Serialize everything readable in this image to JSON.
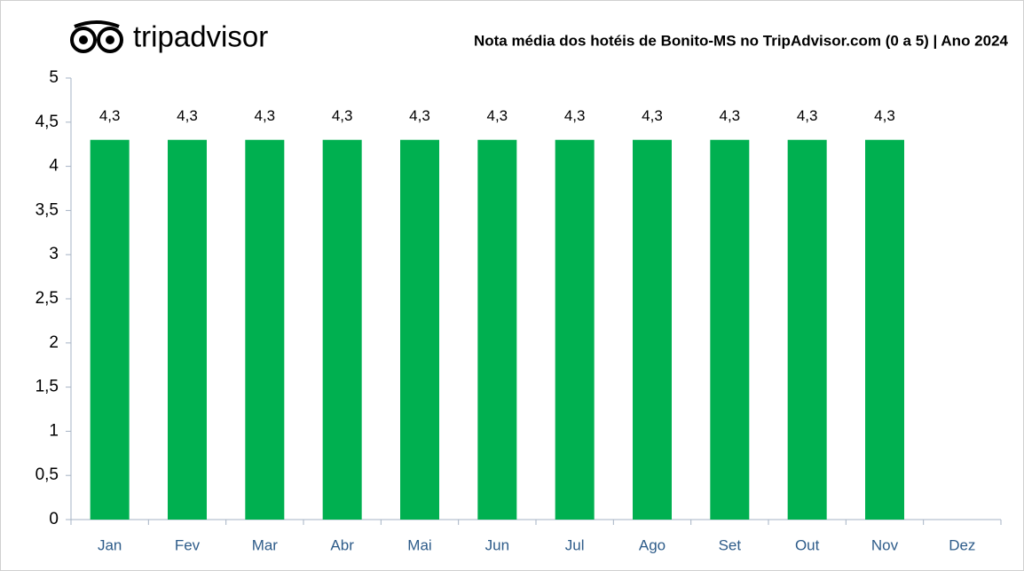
{
  "chart_data": {
    "type": "bar",
    "logo": "tripadvisor",
    "title": "Nota média dos hotéis de Bonito-MS no TripAdvisor.com (0 a 5) | Ano 2024",
    "categories": [
      "Jan",
      "Fev",
      "Mar",
      "Abr",
      "Mai",
      "Jun",
      "Jul",
      "Ago",
      "Set",
      "Out",
      "Nov",
      "Dez"
    ],
    "values": [
      4.3,
      4.3,
      4.3,
      4.3,
      4.3,
      4.3,
      4.3,
      4.3,
      4.3,
      4.3,
      4.3,
      null
    ],
    "value_labels": [
      "4,3",
      "4,3",
      "4,3",
      "4,3",
      "4,3",
      "4,3",
      "4,3",
      "4,3",
      "4,3",
      "4,3",
      "4,3",
      null
    ],
    "color": "#00b050",
    "ylim": [
      0,
      5
    ],
    "yticks": [
      0,
      {
        "value": 0.5,
        "label": "0,5"
      },
      1,
      {
        "value": 1.5,
        "label": "1,5"
      },
      2,
      {
        "value": 2.5,
        "label": "2,5"
      },
      3,
      {
        "value": 3.5,
        "label": "3,5"
      },
      4,
      {
        "value": 4.5,
        "label": "4,5"
      },
      5
    ],
    "grid": false
  }
}
